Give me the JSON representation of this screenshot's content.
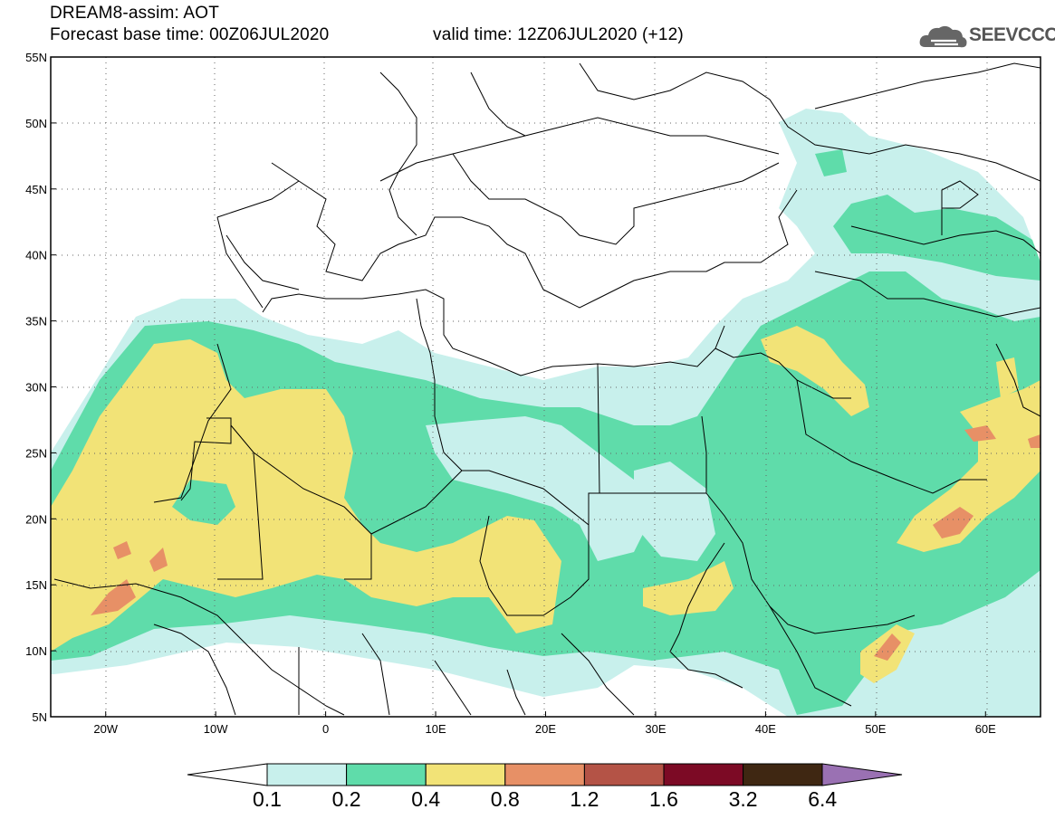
{
  "header": {
    "line1": "DREAM8-assim: AOT",
    "line2": "Forecast base time: 00Z06JUL2020",
    "line3": "valid time: 12Z06JUL2020 (+12)",
    "logo_text": "SEEVCCC",
    "logo_icon": "cloud-icon"
  },
  "map": {
    "lon_range": [
      -25,
      65
    ],
    "lat_range": [
      5,
      55
    ],
    "lon_ticks": [
      "20W",
      "10W",
      "0",
      "10E",
      "20E",
      "30E",
      "40E",
      "50E",
      "60E"
    ],
    "lat_ticks": [
      "55N",
      "50N",
      "45N",
      "40N",
      "35N",
      "30N",
      "25N",
      "20N",
      "15N",
      "10N",
      "5N"
    ],
    "grid": true
  },
  "legend": {
    "labels": [
      "0.1",
      "0.2",
      "0.4",
      "0.8",
      "1.2",
      "1.6",
      "3.2",
      "6.4"
    ],
    "colors": [
      "#c8f0ec",
      "#5fdcaa",
      "#f2e377",
      "#e79066",
      "#b45346",
      "#7c0a25",
      "#3f2712",
      "#9a71b3"
    ]
  }
}
